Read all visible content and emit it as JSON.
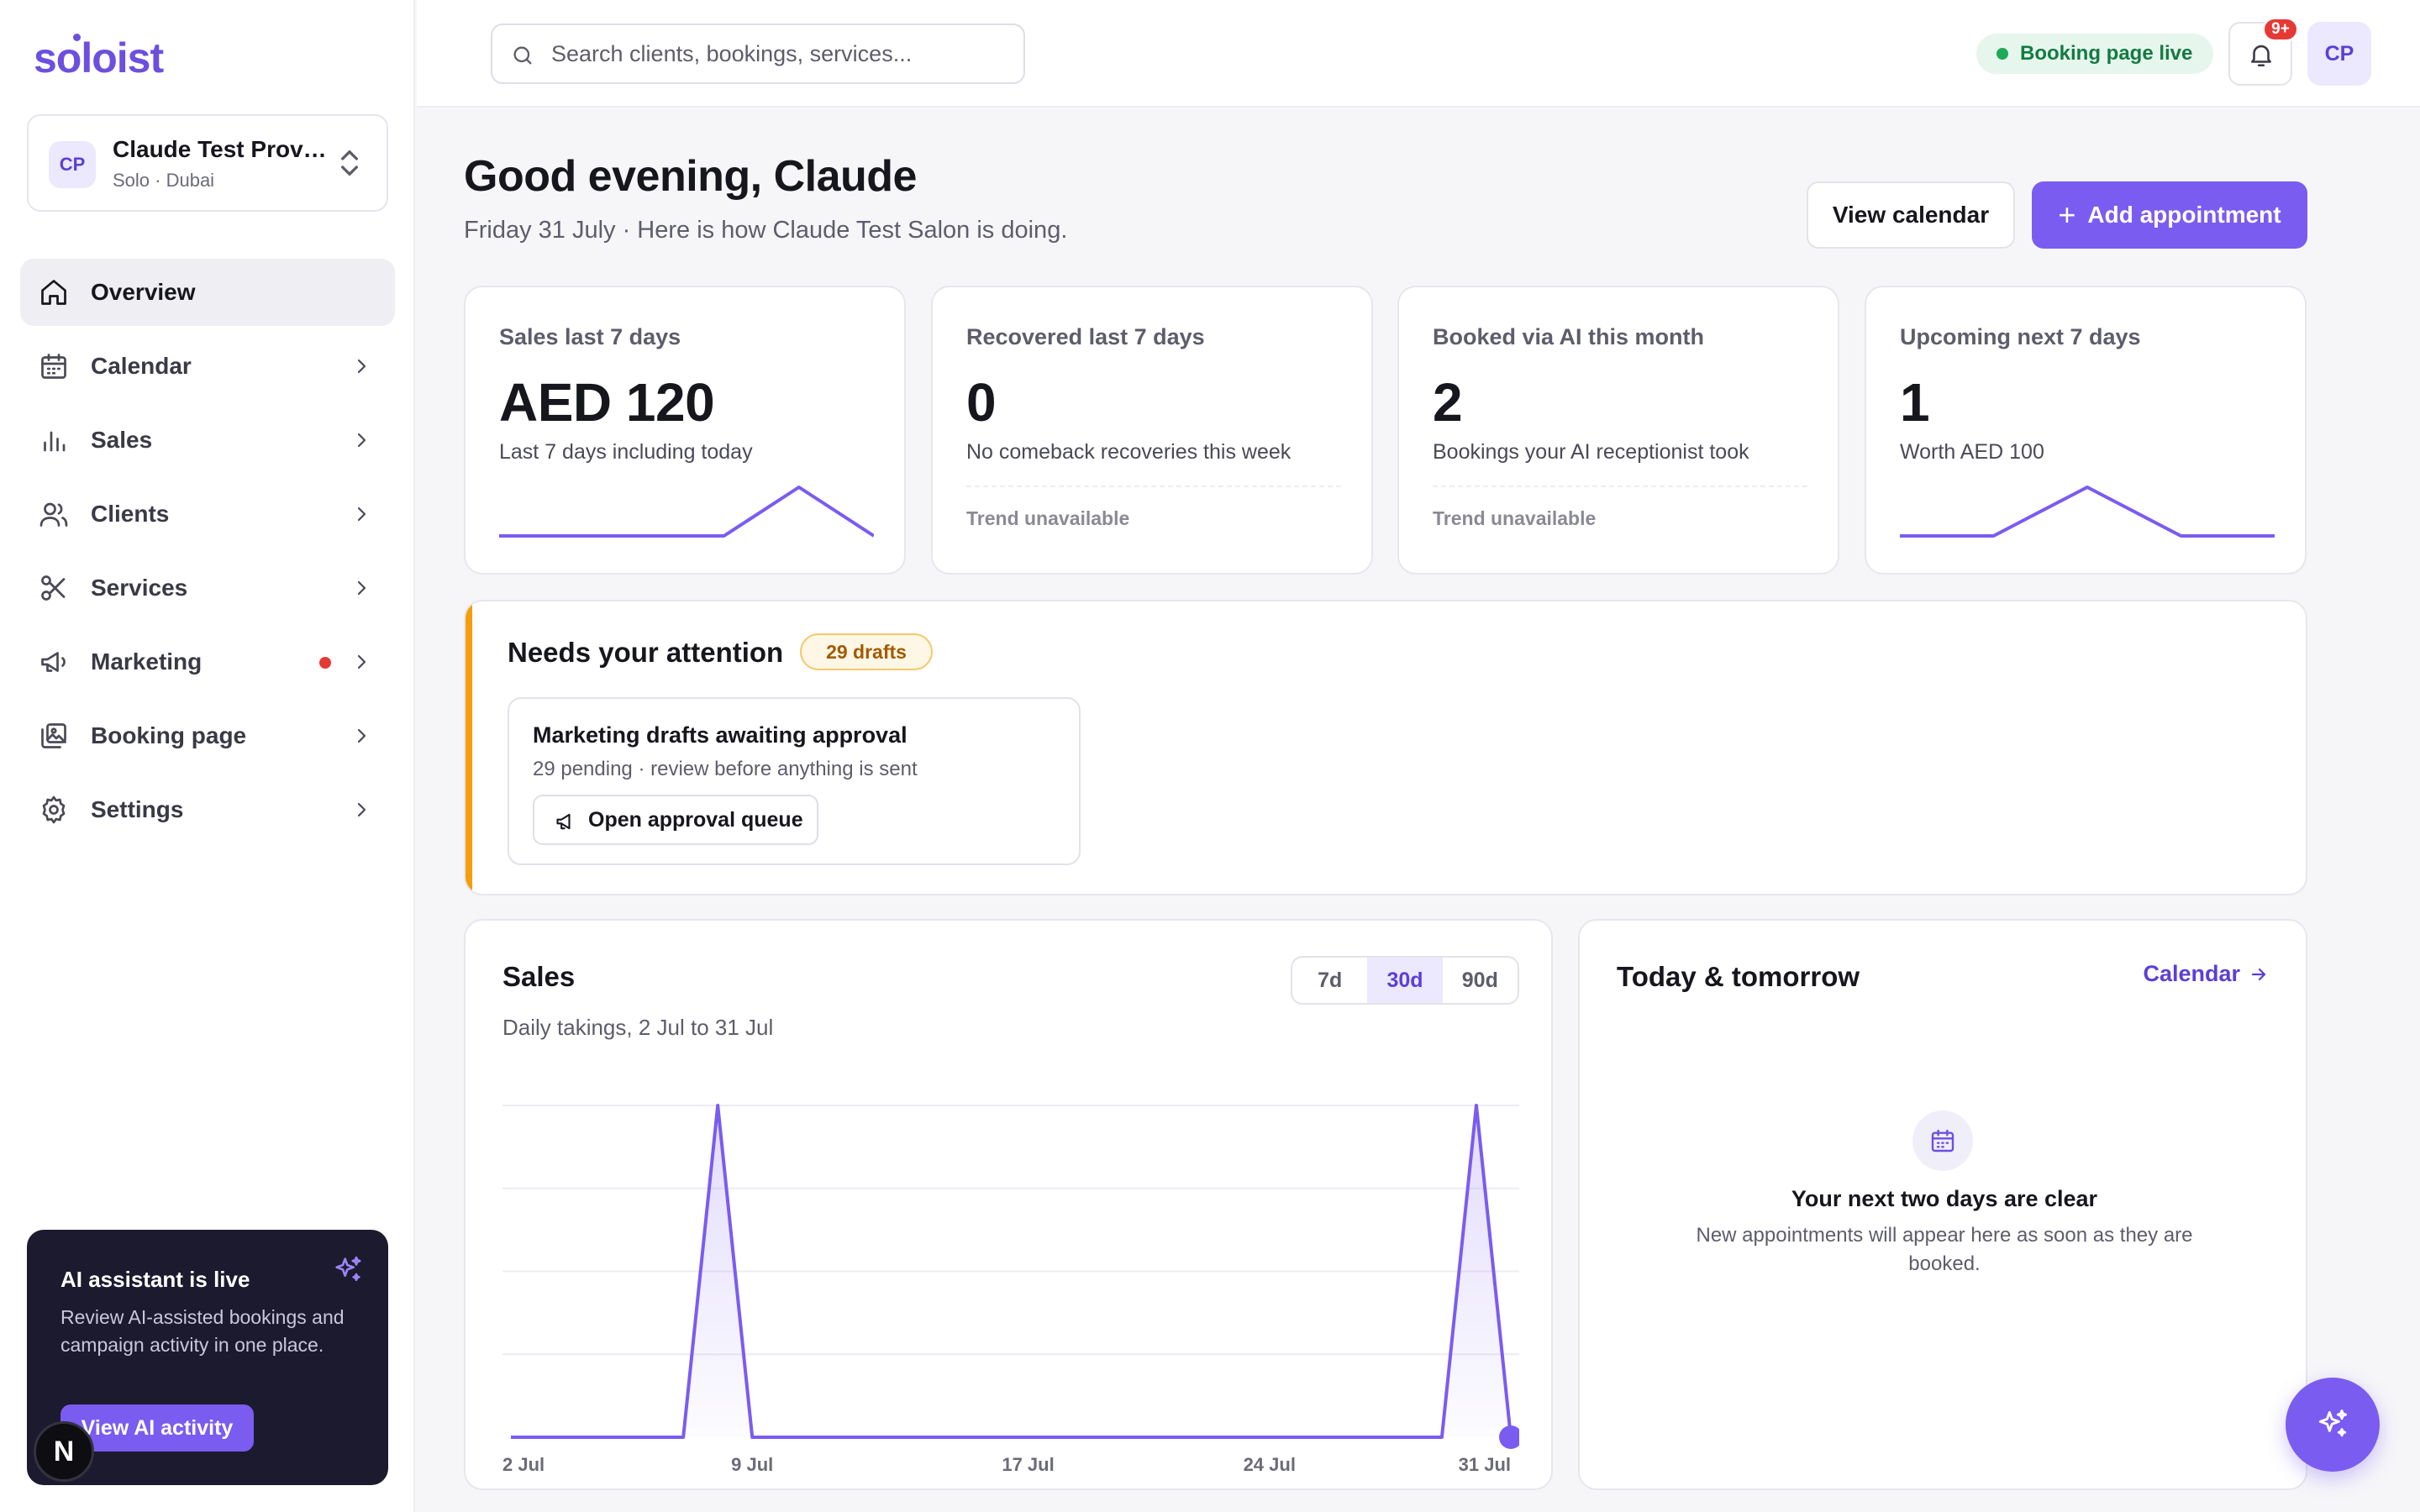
{
  "brand": {
    "logo": "soloist",
    "accent": "#7a5cf0"
  },
  "workspace": {
    "initials": "CP",
    "name": "Claude Test Provider",
    "sub": "Solo · Dubai"
  },
  "sidebar": {
    "items": [
      {
        "label": "Overview",
        "icon": "home-icon",
        "active": true
      },
      {
        "label": "Calendar",
        "icon": "calendar-icon"
      },
      {
        "label": "Sales",
        "icon": "bar-chart-icon"
      },
      {
        "label": "Clients",
        "icon": "users-icon"
      },
      {
        "label": "Services",
        "icon": "scissors-icon"
      },
      {
        "label": "Marketing",
        "icon": "megaphone-icon",
        "dot": true
      },
      {
        "label": "Booking page",
        "icon": "image-gallery-icon"
      },
      {
        "label": "Settings",
        "icon": "gear-icon"
      }
    ],
    "ai_card": {
      "title": "AI assistant is live",
      "desc": "Review AI-assisted bookings and campaign activity in one place.",
      "button": "View AI activity"
    },
    "n_badge": "N"
  },
  "header": {
    "search_placeholder": "Search clients, bookings, services...",
    "booking_status": "Booking page live",
    "notif_count": "9+",
    "user_initials": "CP"
  },
  "greeting": {
    "title": "Good evening, Claude",
    "subtitle": "Friday 31 July · Here is how Claude Test Salon is doing.",
    "view_calendar": "View calendar",
    "add_appointment": "Add appointment",
    "add_icon": "+"
  },
  "kpis": [
    {
      "label": "Sales last 7 days",
      "value": "AED 120",
      "sub": "Last 7 days including today",
      "trend": [
        0,
        0,
        0,
        0,
        1,
        0
      ]
    },
    {
      "label": "Recovered last 7 days",
      "value": "0",
      "sub": "No comeback recoveries this week",
      "trend_note": "Trend unavailable"
    },
    {
      "label": "Booked via AI this month",
      "value": "2",
      "sub": "Bookings your AI receptionist took",
      "trend_note": "Trend unavailable"
    },
    {
      "label": "Upcoming next 7 days",
      "value": "1",
      "sub": "Worth AED 100",
      "trend": [
        0,
        0,
        1,
        0,
        0
      ]
    }
  ],
  "attention": {
    "title": "Needs your attention",
    "badge": "29 drafts",
    "card_title": "Marketing drafts awaiting approval",
    "card_sub": "29 pending · review before anything is sent",
    "card_button": "Open approval queue"
  },
  "sales": {
    "title": "Sales",
    "subtitle": "Daily takings, 2 Jul to 31 Jul",
    "ranges": [
      "7d",
      "30d",
      "90d"
    ],
    "active_range": "30d"
  },
  "chart_data": {
    "type": "area",
    "title": "Sales",
    "subtitle": "Daily takings, 2 Jul to 31 Jul",
    "x": [
      "2 Jul",
      "3 Jul",
      "4 Jul",
      "5 Jul",
      "6 Jul",
      "7 Jul",
      "8 Jul",
      "9 Jul",
      "10 Jul",
      "11 Jul",
      "12 Jul",
      "13 Jul",
      "14 Jul",
      "15 Jul",
      "16 Jul",
      "17 Jul",
      "18 Jul",
      "19 Jul",
      "20 Jul",
      "21 Jul",
      "22 Jul",
      "23 Jul",
      "24 Jul",
      "25 Jul",
      "26 Jul",
      "27 Jul",
      "28 Jul",
      "29 Jul",
      "30 Jul",
      "31 Jul"
    ],
    "values": [
      0,
      0,
      0,
      0,
      0,
      0,
      120,
      0,
      0,
      0,
      0,
      0,
      0,
      0,
      0,
      0,
      0,
      0,
      0,
      0,
      0,
      0,
      0,
      0,
      0,
      0,
      0,
      0,
      120,
      0
    ],
    "xticks": [
      "2 Jul",
      "9 Jul",
      "17 Jul",
      "24 Jul",
      "31 Jul"
    ],
    "ylim": [
      0,
      120
    ],
    "grid": true,
    "color": "#7a5cf0"
  },
  "today": {
    "title": "Today & tomorrow",
    "link": "Calendar",
    "empty_title": "Your next two days are clear",
    "empty_desc": "New appointments will appear here as soon as they are booked."
  }
}
